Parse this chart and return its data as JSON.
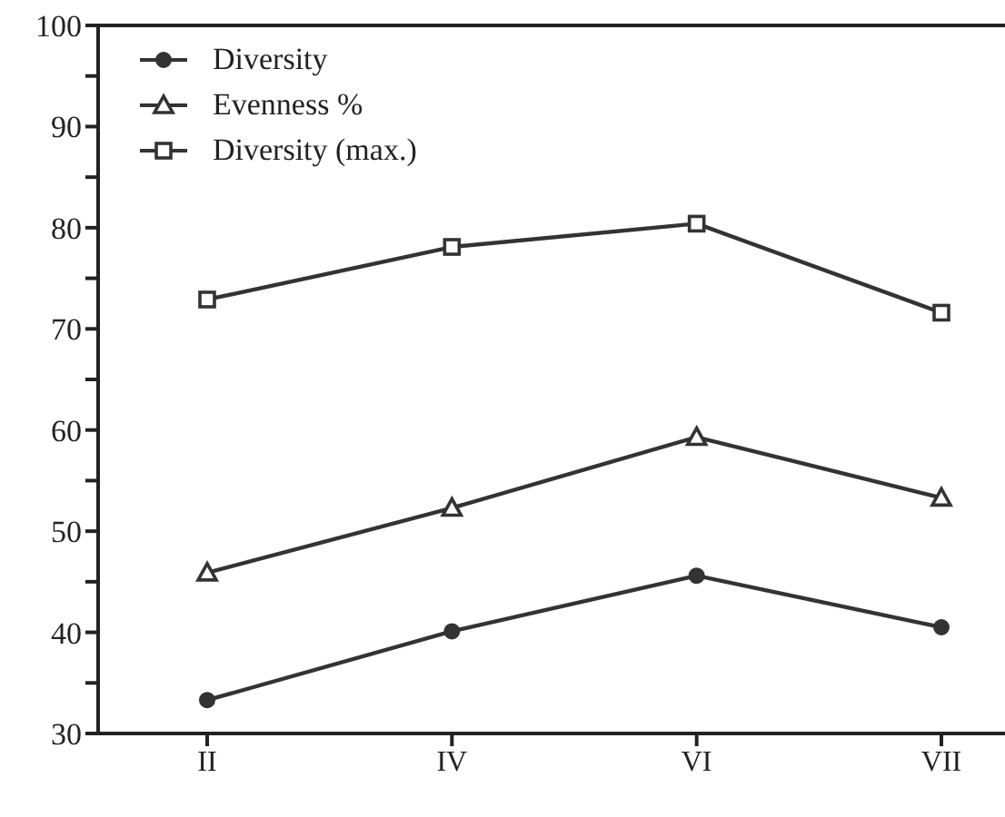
{
  "chart_data": {
    "type": "line",
    "categories": [
      "II",
      "IV",
      "VI",
      "VII"
    ],
    "series": [
      {
        "name": "Diversity",
        "color": "#333333",
        "marker": "circle",
        "values": [
          33.3,
          40.1,
          45.6,
          40.5
        ]
      },
      {
        "name": "Evenness %",
        "color": "#333333",
        "marker": "triangle",
        "values": [
          45.9,
          52.3,
          59.3,
          53.3
        ]
      },
      {
        "name": "Diversity (max.)",
        "color": "#333333",
        "marker": "square",
        "values": [
          72.9,
          78.1,
          80.4,
          71.6
        ]
      }
    ],
    "ylim": [
      30,
      100
    ],
    "yticks": [
      30,
      {
        "value": 35,
        "label": null
      },
      40,
      {
        "value": 45,
        "label": null
      },
      50,
      {
        "value": 55,
        "label": null
      },
      60,
      {
        "value": 65,
        "label": null
      },
      70,
      {
        "value": 75,
        "label": null
      },
      80,
      {
        "value": 85,
        "label": null
      },
      90,
      {
        "value": 95,
        "label": null
      },
      100
    ],
    "grid": false,
    "legend": "top left",
    "line_style": "solid"
  }
}
